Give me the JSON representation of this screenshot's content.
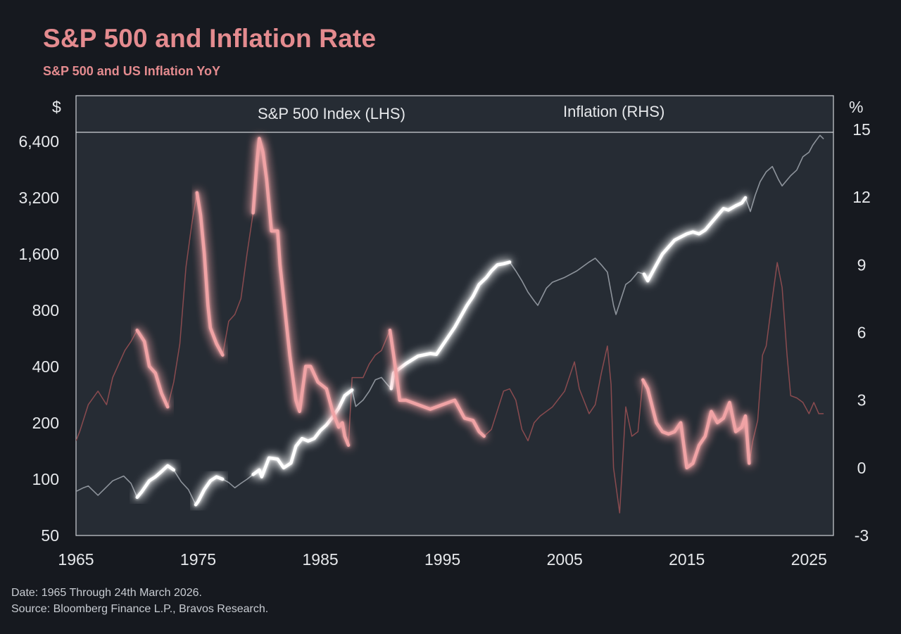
{
  "title": "S&P 500 and Inflation Rate",
  "subtitle": "S&P 500 and US Inflation YoY",
  "footnote": {
    "date_line": "Date: 1965 Through 24th March 2026.",
    "source_line": "Source: Bloomberg Finance L.P., Bravos Research."
  },
  "colors": {
    "background": "#16191f",
    "plot_background": "#262c34",
    "sp500": "#ffffff",
    "inflation": "#f0a3a5",
    "title": "#e48b8f",
    "frame": "#cfd3d8"
  },
  "chart_data": {
    "type": "line",
    "title": "S&P 500 and Inflation Rate",
    "subtitle": "S&P 500 and US Inflation YoY",
    "xlabel": "",
    "ylabel_left": "$",
    "ylabel_right": "%",
    "y_left_scale": "log2",
    "xlim": [
      1965,
      2027
    ],
    "ylim_left": [
      50,
      7200
    ],
    "ylim_right": [
      -3,
      15
    ],
    "x_ticks": [
      "1965",
      "1975",
      "1985",
      "1995",
      "2005",
      "2015",
      "2025"
    ],
    "y_left_ticks": [
      "50",
      "100",
      "200",
      "400",
      "800",
      "1,600",
      "3,200",
      "6,400"
    ],
    "y_right_ticks": [
      "-3",
      "0",
      "3",
      "6",
      "9",
      "12",
      "15"
    ],
    "legend_position": "top",
    "grid": false,
    "series": [
      {
        "name": "S&P 500 Index (LHS)",
        "axis": "left",
        "highlight_ranges": [
          [
            1970.0,
            1973.0
          ],
          [
            1974.6,
            1977.0
          ],
          [
            1979.5,
            1987.8
          ],
          [
            1990.8,
            2000.5
          ],
          [
            2011.5,
            2019.8
          ]
        ],
        "x": [
          1965,
          1965.6,
          1966,
          1966.8,
          1967.5,
          1968,
          1968.9,
          1969.5,
          1970.0,
          1970.4,
          1971.0,
          1971.5,
          1972.0,
          1972.5,
          1973.0,
          1973.6,
          1974.2,
          1974.8,
          1975.0,
          1975.5,
          1976.0,
          1976.5,
          1977.0,
          1977.5,
          1978.0,
          1978.5,
          1979.0,
          1979.5,
          1980.0,
          1980.2,
          1980.8,
          1981.5,
          1982.0,
          1982.6,
          1983.0,
          1983.5,
          1984.0,
          1984.5,
          1985.0,
          1985.5,
          1986.0,
          1986.5,
          1987.0,
          1987.6,
          1987.9,
          1988.5,
          1989.0,
          1989.5,
          1990.0,
          1990.5,
          1990.8,
          1991.0,
          1992.0,
          1993.0,
          1994.0,
          1994.5,
          1995.0,
          1996.0,
          1997.0,
          1997.5,
          1998.0,
          1998.6,
          1999.0,
          1999.5,
          2000.0,
          2000.5,
          2001.0,
          2001.5,
          2002.0,
          2002.5,
          2002.8,
          2003.5,
          2004.0,
          2005.0,
          2006.0,
          2007.0,
          2007.5,
          2008.0,
          2008.5,
          2009.0,
          2009.2,
          2010.0,
          2010.4,
          2011.0,
          2011.5,
          2011.8,
          2012.5,
          2013.0,
          2014.0,
          2015.0,
          2015.5,
          2016.0,
          2016.5,
          2017.0,
          2018.0,
          2018.4,
          2019.0,
          2019.5,
          2019.8,
          2020.2,
          2020.6,
          2021.0,
          2021.5,
          2022.0,
          2022.5,
          2022.8,
          2023.5,
          2024.0,
          2024.5,
          2025.0,
          2025.3,
          2025.6,
          2025.9,
          2026.2
        ],
        "values": [
          86,
          90,
          92,
          82,
          91,
          98,
          104,
          95,
          80,
          86,
          98,
          103,
          110,
          118,
          112,
          97,
          88,
          73,
          76,
          88,
          98,
          103,
          100,
          96,
          90,
          95,
          100,
          106,
          112,
          103,
          130,
          128,
          115,
          122,
          150,
          165,
          160,
          165,
          182,
          195,
          215,
          240,
          280,
          300,
          245,
          265,
          295,
          340,
          350,
          320,
          305,
          370,
          415,
          455,
          470,
          465,
          520,
          650,
          850,
          950,
          1100,
          1200,
          1300,
          1400,
          1420,
          1450,
          1300,
          1150,
          1000,
          900,
          850,
          1050,
          1130,
          1200,
          1300,
          1450,
          1520,
          1400,
          1280,
          850,
          760,
          1100,
          1150,
          1280,
          1250,
          1150,
          1400,
          1600,
          1900,
          2050,
          2100,
          2050,
          2150,
          2350,
          2800,
          2750,
          2900,
          3000,
          3200,
          2700,
          3300,
          3900,
          4400,
          4700,
          4000,
          3700,
          4200,
          4500,
          5300,
          5600,
          6100,
          6500,
          6900,
          6600
        ]
      },
      {
        "name": "Inflation (RHS)",
        "axis": "right",
        "highlight_ranges": [
          [
            1970.0,
            1972.5
          ],
          [
            1974.6,
            1977.0
          ],
          [
            1979.5,
            1987.3
          ],
          [
            1990.7,
            1998.4
          ],
          [
            2011.4,
            2020.1
          ]
        ],
        "x": [
          1965,
          1965.3,
          1966,
          1966.8,
          1967.5,
          1968,
          1969,
          1969.5,
          1970.0,
          1970.6,
          1971.0,
          1971.5,
          1972.0,
          1972.5,
          1973.0,
          1973.5,
          1974.0,
          1974.5,
          1974.9,
          1975.2,
          1975.5,
          1975.8,
          1976.0,
          1976.5,
          1977.0,
          1977.5,
          1978.0,
          1978.5,
          1979.0,
          1979.5,
          1979.8,
          1980.0,
          1980.3,
          1980.6,
          1981.0,
          1981.5,
          1981.7,
          1982.0,
          1982.5,
          1983.0,
          1983.3,
          1983.8,
          1984.2,
          1984.8,
          1985.5,
          1986.0,
          1986.5,
          1986.8,
          1987.0,
          1987.3,
          1987.6,
          1988.0,
          1988.5,
          1989.0,
          1989.5,
          1990.0,
          1990.7,
          1991.0,
          1991.5,
          1992.0,
          1993.0,
          1994.0,
          1995.0,
          1996.0,
          1996.8,
          1997.5,
          1998.0,
          1998.4,
          1999.0,
          2000.0,
          2000.5,
          2001.0,
          2001.5,
          2002.0,
          2002.5,
          2003.0,
          2004.0,
          2005.0,
          2005.8,
          2006.2,
          2007.0,
          2007.5,
          2008.0,
          2008.5,
          2008.8,
          2009.0,
          2009.5,
          2010.0,
          2010.5,
          2011.0,
          2011.4,
          2011.8,
          2012.5,
          2013.0,
          2013.5,
          2014.0,
          2014.5,
          2015.0,
          2015.5,
          2016.0,
          2016.5,
          2017.0,
          2017.5,
          2018.0,
          2018.5,
          2019.0,
          2019.5,
          2019.8,
          2020.1,
          2020.4,
          2020.8,
          2021.2,
          2021.5,
          2022.0,
          2022.4,
          2022.8,
          2023.2,
          2023.5,
          2024.0,
          2024.5,
          2025.0,
          2025.4,
          2025.8,
          2026.2
        ],
        "values": [
          1.2,
          1.6,
          2.8,
          3.4,
          2.8,
          4.0,
          5.2,
          5.6,
          6.1,
          5.6,
          4.5,
          4.2,
          3.3,
          2.7,
          3.8,
          5.5,
          8.9,
          10.9,
          12.2,
          11.2,
          9.5,
          7.2,
          6.2,
          5.5,
          5.0,
          6.5,
          6.8,
          7.5,
          9.5,
          11.3,
          13.5,
          14.6,
          14.0,
          12.8,
          10.5,
          10.5,
          9.0,
          7.5,
          5.0,
          3.0,
          2.5,
          4.5,
          4.5,
          3.8,
          3.5,
          2.5,
          1.8,
          2.0,
          1.4,
          1.0,
          4.0,
          4.0,
          4.0,
          4.6,
          5.0,
          5.2,
          6.1,
          5.0,
          3.0,
          3.0,
          2.8,
          2.6,
          2.8,
          3.0,
          2.2,
          2.1,
          1.6,
          1.4,
          1.7,
          3.4,
          3.5,
          3.0,
          1.7,
          1.2,
          2.0,
          2.3,
          2.7,
          3.4,
          4.7,
          3.5,
          2.4,
          2.8,
          4.2,
          5.4,
          3.7,
          0.0,
          -2.0,
          2.7,
          1.4,
          1.6,
          3.9,
          3.5,
          2.0,
          1.6,
          1.5,
          1.6,
          2.0,
          0.0,
          0.2,
          1.0,
          1.4,
          2.5,
          2.0,
          2.2,
          2.9,
          1.6,
          1.8,
          2.3,
          0.2,
          1.2,
          2.1,
          5.0,
          5.4,
          7.5,
          9.1,
          8.0,
          5.0,
          3.2,
          3.1,
          2.9,
          2.4,
          2.9,
          2.4,
          2.4
        ]
      }
    ]
  }
}
